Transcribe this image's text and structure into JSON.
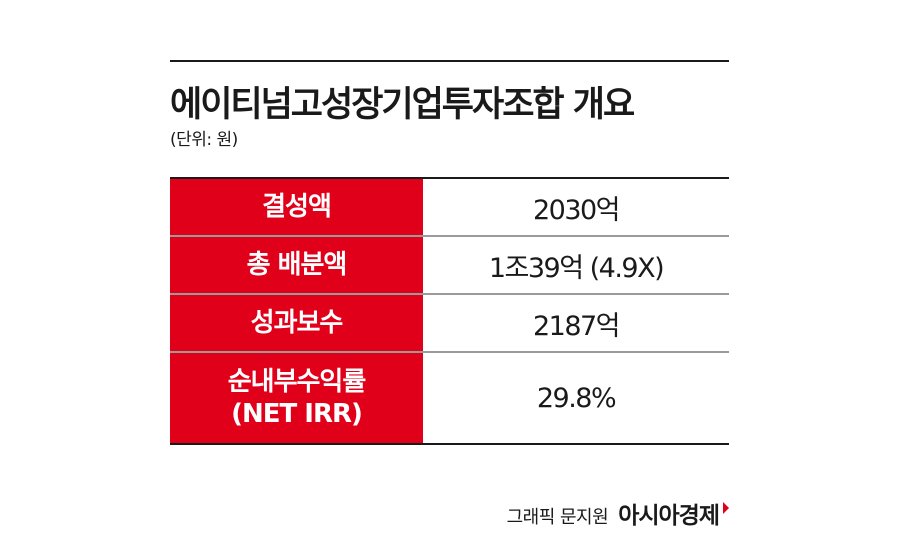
{
  "title": "에이티넘고성장기업투자조합 개요",
  "unit": "(단위: 원)",
  "rows": [
    {
      "label": "결성액",
      "value": "2030억"
    },
    {
      "label": "총 배분액",
      "value": "1조39억 (4.9X)"
    },
    {
      "label": "성과보수",
      "value": "2187억"
    },
    {
      "label_line1": "순내부수익률",
      "label_line2": "(NET IRR)",
      "value": "29.8%"
    }
  ],
  "footer": {
    "credit": "그래픽 문지원",
    "brand": "아시아경제"
  },
  "colors": {
    "accent": "#e1001a",
    "text": "#1a1a1a"
  }
}
